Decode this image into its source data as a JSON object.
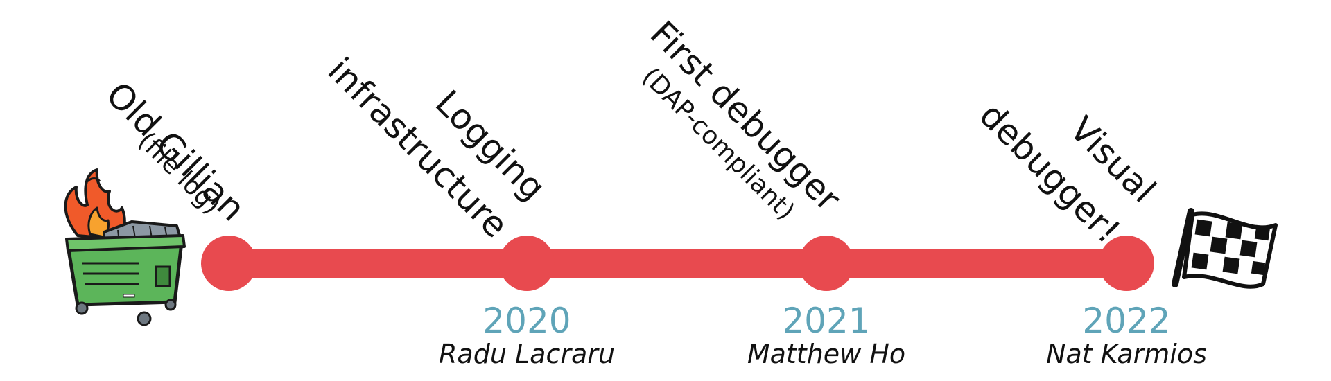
{
  "colors": {
    "line": "#e84a4f",
    "year": "#5fa4b8",
    "text": "#111111"
  },
  "timeline": {
    "milestones": [
      {
        "title": "Old Gillian",
        "subtitle": "(file log)",
        "year": "",
        "person": ""
      },
      {
        "title": "Logging",
        "title2": "infrastructure",
        "year": "2020",
        "person": "Radu Lacraru"
      },
      {
        "title": "First debugger",
        "subtitle": "(DAP-compliant)",
        "year": "2021",
        "person": "Matthew Ho"
      },
      {
        "title": "Visual",
        "title2": "debugger!",
        "year": "2022",
        "person": "Nat Karmios"
      }
    ]
  },
  "icons": {
    "start": "dumpster-fire-icon",
    "end": "checkered-flag-icon"
  }
}
